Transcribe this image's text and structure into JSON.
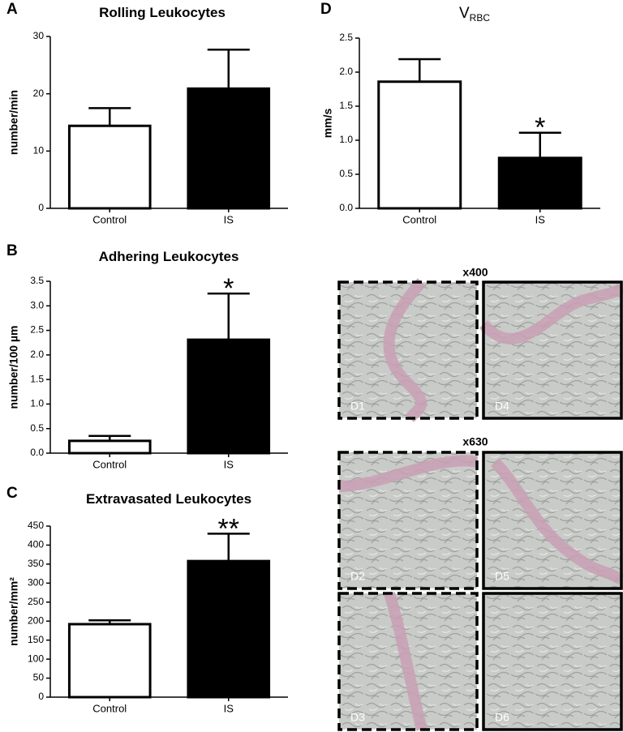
{
  "chart_data": [
    {
      "type": "bar",
      "panel": "A",
      "title": "Rolling Leukocytes",
      "ylabel": "number/min",
      "categories": [
        "Control",
        "IS"
      ],
      "values": [
        14.4,
        20.9
      ],
      "errors": [
        3.1,
        6.8
      ],
      "colors": [
        "#ffffff",
        "#000000"
      ],
      "annotations": [
        null,
        null
      ],
      "ylim": [
        0,
        30
      ],
      "yticks": [
        0,
        10,
        20,
        30
      ]
    },
    {
      "type": "bar",
      "panel": "B",
      "title": "Adhering Leukocytes",
      "ylabel": "number/100 µm",
      "categories": [
        "Control",
        "IS"
      ],
      "values": [
        0.25,
        2.31
      ],
      "errors": [
        0.1,
        0.94
      ],
      "colors": [
        "#ffffff",
        "#000000"
      ],
      "annotations": [
        null,
        "*"
      ],
      "ylim": [
        0,
        3.5
      ],
      "yticks": [
        {
          "value": 0,
          "label": "0.0"
        },
        0.5,
        {
          "value": 1,
          "label": "1.0"
        },
        1.5,
        {
          "value": 2,
          "label": "2.0"
        },
        2.5,
        {
          "value": 3,
          "label": "3.0"
        },
        3.5
      ]
    },
    {
      "type": "bar",
      "panel": "C",
      "title": "Extravasated Leukocytes",
      "ylabel": "number/mm²",
      "categories": [
        "Control",
        "IS"
      ],
      "values": [
        192,
        358
      ],
      "errors": [
        10,
        72
      ],
      "colors": [
        "#ffffff",
        "#000000"
      ],
      "annotations": [
        null,
        "**"
      ],
      "ylim": [
        0,
        450
      ],
      "yticks": [
        0,
        50,
        100,
        150,
        200,
        250,
        300,
        350,
        400,
        450
      ]
    },
    {
      "type": "bar",
      "panel": "D",
      "title": "V",
      "title_subscript": "RBC",
      "ylabel": "mm/s",
      "categories": [
        "Control",
        "IS"
      ],
      "values": [
        1.86,
        0.74
      ],
      "errors": [
        0.33,
        0.37
      ],
      "colors": [
        "#ffffff",
        "#000000"
      ],
      "annotations": [
        null,
        "*"
      ],
      "ylim": [
        0,
        2.5
      ],
      "yticks": [
        {
          "value": 0,
          "label": "0.0"
        },
        0.5,
        {
          "value": 1,
          "label": "1.0"
        },
        1.5,
        {
          "value": 2,
          "label": "2.0"
        },
        2.5
      ]
    }
  ],
  "micrographs": {
    "magnifications": [
      "x400",
      "x630"
    ],
    "panels": [
      "D1",
      "D4",
      "D2",
      "D5",
      "D3",
      "D6"
    ]
  }
}
